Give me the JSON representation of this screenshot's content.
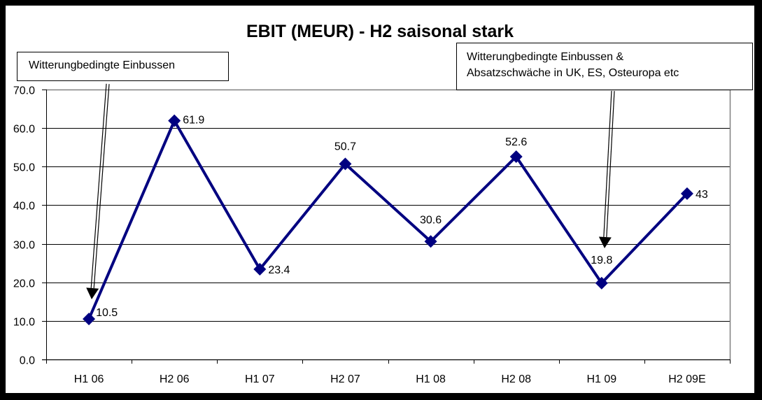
{
  "chart_data": {
    "type": "line",
    "title": "EBIT (MEUR) - H2 saisonal stark",
    "xlabel": "",
    "ylabel": "",
    "categories": [
      "H1 06",
      "H2 06",
      "H1 07",
      "H2 07",
      "H1 08",
      "H2 08",
      "H1 09",
      "H2 09E"
    ],
    "series": [
      {
        "name": "EBIT",
        "values": [
          10.5,
          61.9,
          23.4,
          50.7,
          30.6,
          52.6,
          19.8,
          43
        ],
        "color": "#000080",
        "marker": "diamond"
      }
    ],
    "data_labels": [
      "10.5",
      "61.9",
      "23.4",
      "50.7",
      "30.6",
      "52.6",
      "19.8",
      "43"
    ],
    "ylim": [
      0,
      70
    ],
    "yticks": [
      "0.0",
      "10.0",
      "20.0",
      "30.0",
      "40.0",
      "50.0",
      "60.0",
      "70.0"
    ],
    "grid": true,
    "legend": "none",
    "annotations": [
      {
        "text": "Witterungbedingte Einbussen",
        "points_to": "H1 06"
      },
      {
        "text": "Witterungbedingte Einbussen & Absatzschwäche in UK, ES, Osteuropa etc",
        "points_to": "H1 09"
      }
    ]
  },
  "annotations": {
    "note1": "Witterungbedingte Einbussen",
    "note2_line1": "Witterungbedingte Einbussen &",
    "note2_line2": "Absatzschwäche in UK, ES, Osteuropa etc"
  },
  "colors": {
    "series": "#000080",
    "frame": "#000000",
    "background": "#ffffff",
    "plot_border": "#808080"
  }
}
